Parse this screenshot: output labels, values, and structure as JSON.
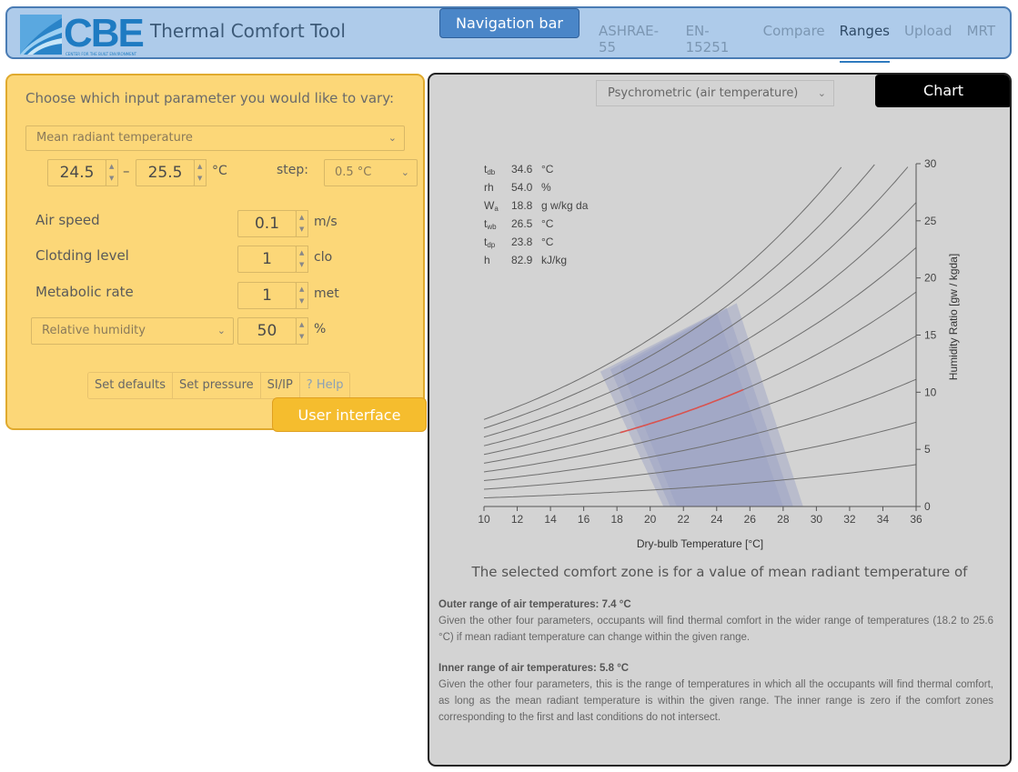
{
  "nav": {
    "logo_text": "CBE",
    "logo_subtext": "CENTER FOR THE BUILT ENVIRONMENT",
    "app_title": "Thermal Comfort Tool",
    "badge": "Navigation bar",
    "tabs": [
      {
        "label": "ASHRAE-55",
        "active": false
      },
      {
        "label": "EN-15251",
        "active": false
      },
      {
        "label": "Compare",
        "active": false
      },
      {
        "label": "Ranges",
        "active": true
      },
      {
        "label": "Upload",
        "active": false
      },
      {
        "label": "MRT",
        "active": false
      }
    ]
  },
  "inputs": {
    "prompt": "Choose which input parameter you would like to vary:",
    "parameter_select": "Mean radiant temperature",
    "range_from": "24.5",
    "range_sep": "–",
    "range_to": "25.5",
    "range_unit": "°C",
    "step_label": "step:",
    "step_select": "0.5 °C",
    "air_speed_label": "Air speed",
    "air_speed_value": "0.1",
    "air_speed_unit": "m/s",
    "clothing_label": "Clotding level",
    "clothing_value": "1",
    "clothing_unit": "clo",
    "metabolic_label": "Metabolic rate",
    "metabolic_value": "1",
    "metabolic_unit": "met",
    "humidity_select": "Relative humidity",
    "humidity_value": "50",
    "humidity_unit": "%",
    "buttons": [
      "Set defaults",
      "Set pressure",
      "SI/IP",
      "? Help"
    ],
    "badge": "User interface"
  },
  "chart_panel": {
    "badge": "Chart",
    "chart_type_select": "Psychrometric (air temperature)",
    "readout": [
      {
        "sym": "t",
        "sub": "db",
        "value": "34.6",
        "unit": "°C"
      },
      {
        "sym": "rh",
        "sub": "",
        "value": "54.0",
        "unit": "%"
      },
      {
        "sym": "W",
        "sub": "a",
        "value": "18.8",
        "unit": "g w/kg da"
      },
      {
        "sym": "t",
        "sub": "wb",
        "value": "26.5",
        "unit": "°C"
      },
      {
        "sym": "t",
        "sub": "dp",
        "value": "23.8",
        "unit": "°C"
      },
      {
        "sym": "h",
        "sub": "",
        "value": "82.9",
        "unit": "kJ/kg"
      }
    ],
    "summary": "The selected comfort zone is for a value of mean radiant temperature of",
    "outer_heading": "Outer range of air temperatures: 7.4 °C",
    "outer_text": "Given the other four parameters, occupants will find thermal comfort in the wider range of temperatures (18.2 to 25.6 °C) if mean radiant temperature can change within the given range.",
    "inner_heading": "Inner range of air temperatures: 5.8 °C",
    "inner_text": "Given the other four parameters, this is the range of temperatures in which all the occupants will find thermal comfort, as long as the mean radiant temperature is within the given range. The inner range is zero if the comfort zones corresponding to the first and last conditions do not intersect."
  },
  "chart_data": {
    "type": "line",
    "xlabel": "Dry-bulb Temperature [°C]",
    "ylabel": "Humidity Ratio [gw / kgda]",
    "xlim": [
      10,
      36
    ],
    "ylim": [
      0,
      30
    ],
    "xticks": [
      10,
      12,
      14,
      16,
      18,
      20,
      22,
      24,
      26,
      28,
      30,
      32,
      34,
      36
    ],
    "yticks": [
      0,
      5,
      10,
      15,
      20,
      25,
      30
    ],
    "rh_curves_percent": [
      10,
      20,
      30,
      40,
      50,
      60,
      70,
      80,
      90,
      100
    ],
    "comfort_zones": [
      {
        "polygon": [
          [
            17.0,
            11.8
          ],
          [
            20.8,
            0
          ],
          [
            28.0,
            0
          ],
          [
            24.0,
            17.0
          ]
        ]
      },
      {
        "polygon": [
          [
            17.6,
            12.0
          ],
          [
            21.2,
            0
          ],
          [
            28.6,
            0
          ],
          [
            24.6,
            17.4
          ]
        ]
      },
      {
        "polygon": [
          [
            18.2,
            12.2
          ],
          [
            21.6,
            0
          ],
          [
            29.2,
            0
          ],
          [
            25.2,
            17.8
          ]
        ]
      }
    ],
    "selected_rh_line": {
      "rh": 50,
      "x_range": [
        18.2,
        25.6
      ],
      "color": "#d9534f"
    },
    "colors": {
      "curve": "#6f6f6f",
      "zone": "#9aa0c4",
      "axis": "#555555"
    }
  }
}
